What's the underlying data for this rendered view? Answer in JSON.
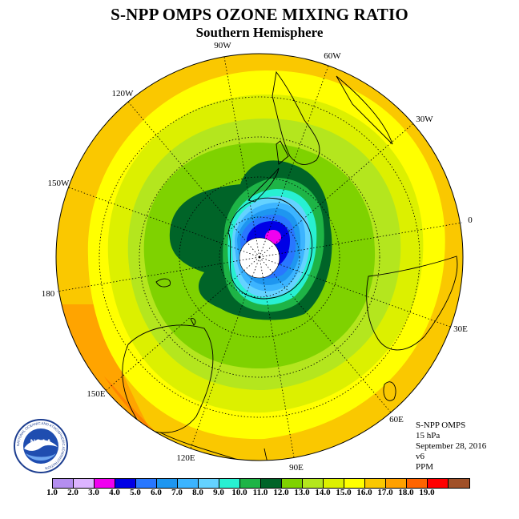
{
  "title": "S-NPP OMPS OZONE MIXING RATIO",
  "subtitle": "Southern Hemisphere",
  "longitude_labels": {
    "w90": "90W",
    "w60": "60W",
    "w120": "120W",
    "w30": "30W",
    "w150": "150W",
    "e0": "0",
    "w180": "180",
    "e30": "30E",
    "e150": "150E",
    "e60": "60E",
    "e120": "120E",
    "e90": "90E"
  },
  "info": {
    "instrument": "S-NPP OMPS",
    "level": "15 hPa",
    "date": "September 28, 2016",
    "version": "v6",
    "units": "PPM"
  },
  "colorbar": {
    "labels": [
      "1.0",
      "2.0",
      "3.0",
      "4.0",
      "5.0",
      "6.0",
      "7.0",
      "8.0",
      "9.0",
      "10.0",
      "11.0",
      "12.0",
      "13.0",
      "14.0",
      "15.0",
      "16.0",
      "17.0",
      "18.0",
      "19.0"
    ],
    "colors": [
      "#b48ef0",
      "#dcb4ff",
      "#f000f0",
      "#0000e6",
      "#2877ff",
      "#1e96f0",
      "#3cb4ff",
      "#64d2ff",
      "#28f0d2",
      "#1eb446",
      "#006428",
      "#7fd200",
      "#b4e61e",
      "#dcf000",
      "#ffff00",
      "#fac800",
      "#ffa000",
      "#ff6400",
      "#ff0000",
      "#a05028"
    ]
  },
  "logo": {
    "text": "NOAA",
    "ring_text": "NATIONAL OCEANIC AND ATMOSPHERIC ADMINISTRATION",
    "dept_text": "U.S. DEPARTMENT OF COMMERCE"
  }
}
